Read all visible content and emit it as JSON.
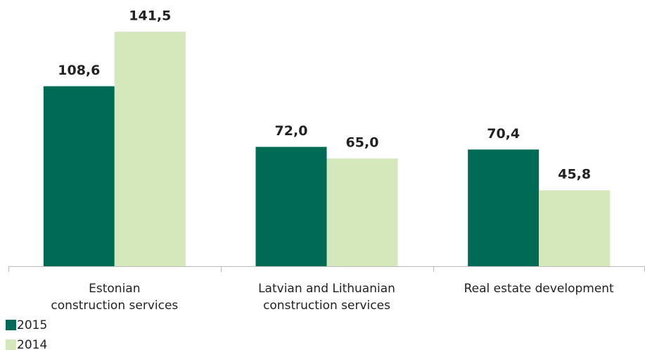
{
  "chart_data": {
    "type": "bar",
    "categories": [
      [
        "Estonian",
        "construction services"
      ],
      [
        "Latvian and Lithuanian",
        "construction services"
      ],
      [
        "Real estate development"
      ]
    ],
    "series": [
      {
        "name": "2015",
        "color": "#006b54",
        "values": [
          108.6,
          72.0,
          70.4
        ],
        "value_labels": [
          "108,6",
          "72,0",
          "70,4"
        ]
      },
      {
        "name": "2014",
        "color": "#d5e8bb",
        "values": [
          141.5,
          65.0,
          45.8
        ],
        "value_labels": [
          "141,5",
          "65,0",
          "45,8"
        ]
      }
    ],
    "ylim": [
      0,
      150
    ]
  }
}
